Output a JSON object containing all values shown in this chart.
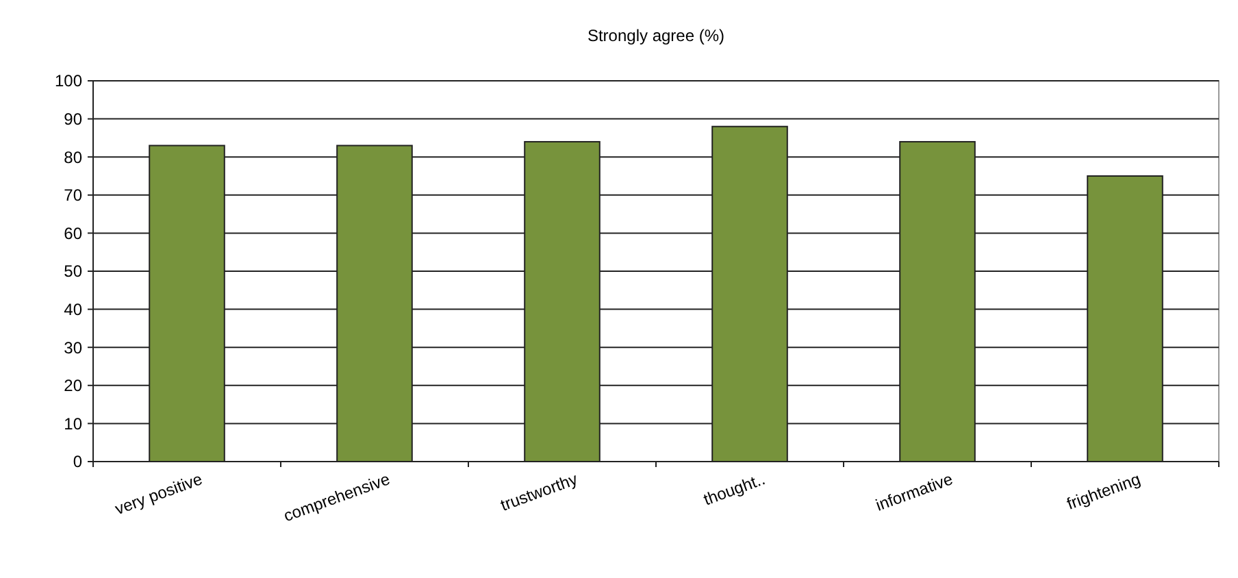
{
  "chart_data": {
    "type": "bar",
    "title": "Strongly agree (%)",
    "categories": [
      "very positive",
      "comprehensive",
      "trustworthy",
      "thought..",
      "informative",
      "frightening"
    ],
    "values": [
      83,
      83,
      84,
      88,
      84,
      75
    ],
    "color": "#77933c",
    "ylim": [
      0,
      100
    ],
    "yticks": [
      0,
      10,
      20,
      30,
      40,
      50,
      60,
      70,
      80,
      90,
      100
    ],
    "grid": "y"
  }
}
